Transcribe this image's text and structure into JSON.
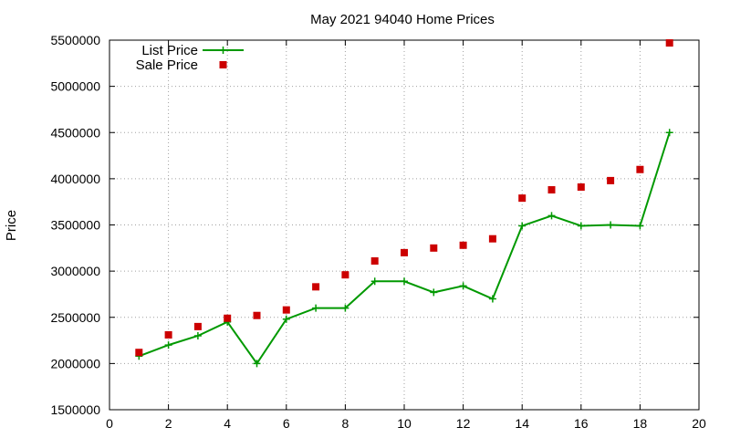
{
  "chart_data": {
    "type": "line",
    "title": "May 2021 94040 Home Prices",
    "xlabel": "",
    "ylabel": "Price",
    "xlim": [
      0,
      20
    ],
    "ylim": [
      1500000,
      5500000
    ],
    "xticks": [
      0,
      2,
      4,
      6,
      8,
      10,
      12,
      14,
      16,
      18,
      20
    ],
    "yticks": [
      1500000,
      2000000,
      2500000,
      3000000,
      3500000,
      4000000,
      4500000,
      5000000,
      5500000
    ],
    "grid": true,
    "legend_position": "top-left",
    "x": [
      1,
      2,
      3,
      4,
      5,
      6,
      7,
      8,
      9,
      10,
      11,
      12,
      13,
      14,
      15,
      16,
      17,
      18,
      19
    ],
    "series": [
      {
        "name": "List Price",
        "style": "line-plus",
        "color": "#009900",
        "values": [
          2080000,
          2200000,
          2300000,
          2450000,
          2000000,
          2480000,
          2600000,
          2600000,
          2890000,
          2890000,
          2770000,
          2840000,
          2700000,
          3490000,
          3600000,
          3490000,
          3500000,
          3490000,
          4500000
        ]
      },
      {
        "name": "Sale Price",
        "style": "square-points",
        "color": "#cc0000",
        "values": [
          2120000,
          2310000,
          2400000,
          2490000,
          2520000,
          2580000,
          2830000,
          2960000,
          3110000,
          3200000,
          3250000,
          3280000,
          3350000,
          3790000,
          3880000,
          3910000,
          3980000,
          4100000,
          5470000
        ]
      }
    ]
  }
}
